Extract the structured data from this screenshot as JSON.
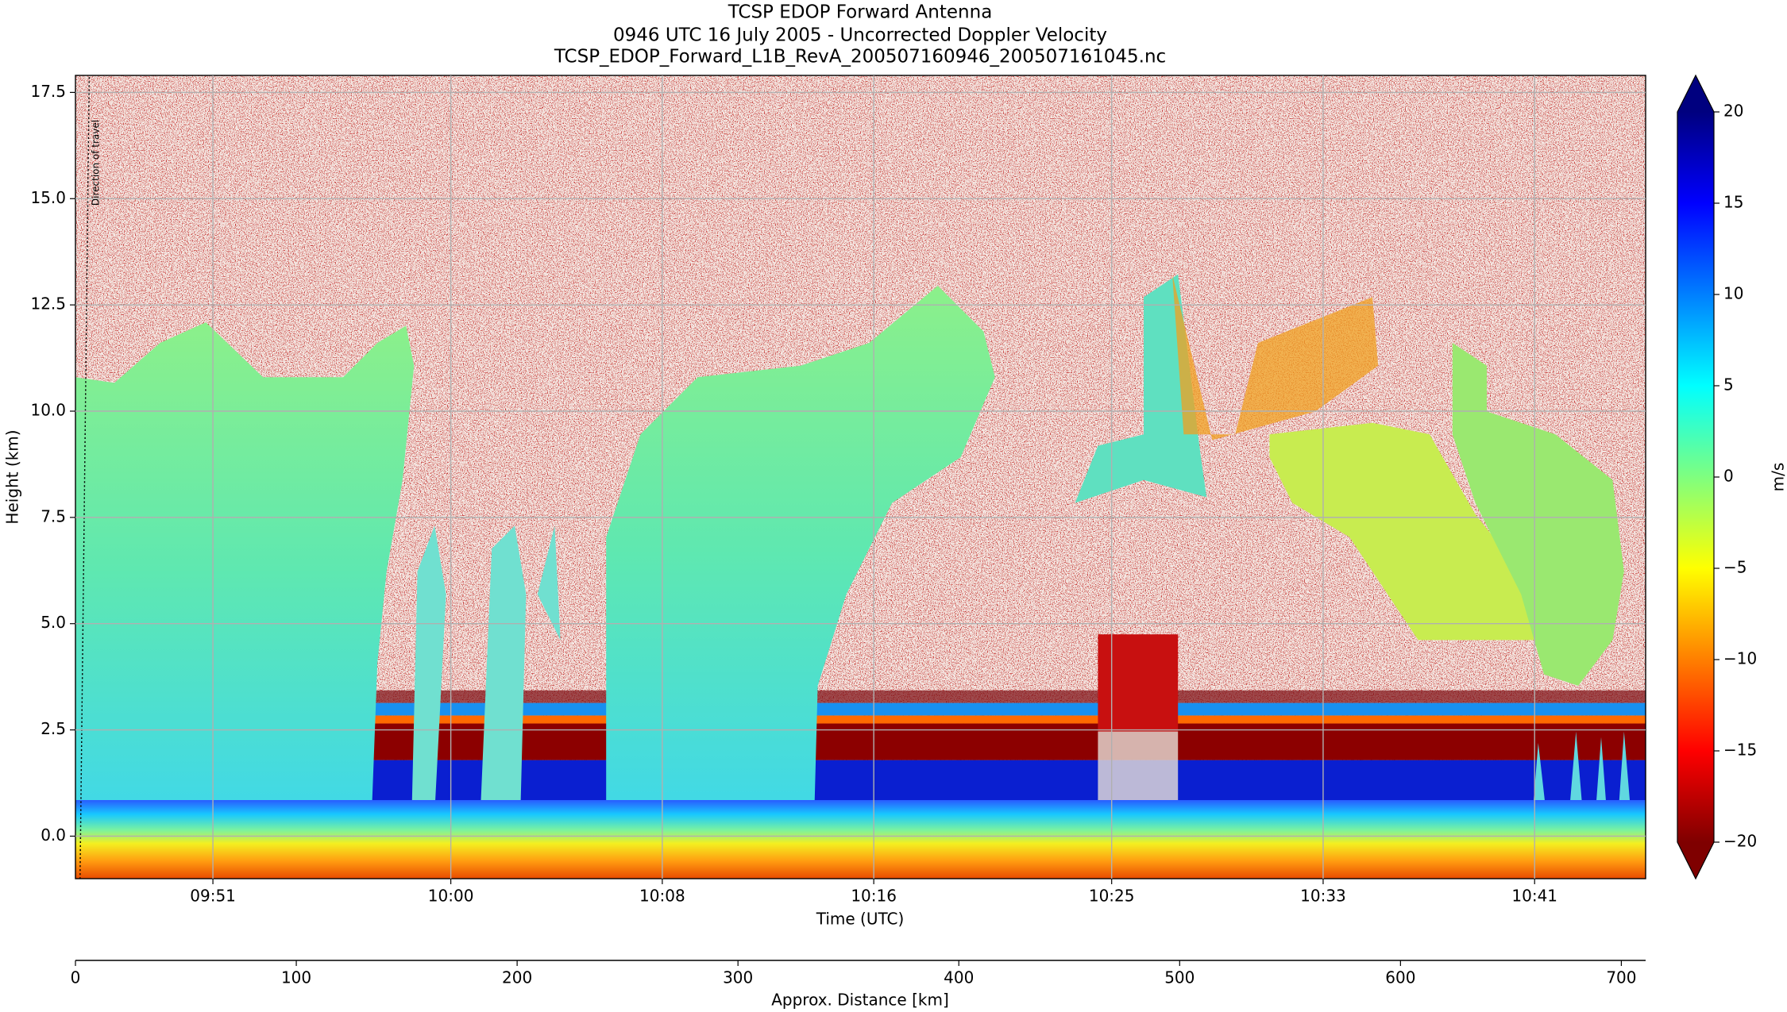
{
  "chart_data": {
    "type": "heatmap",
    "title": "TCSP EDOP Forward Antenna",
    "subtitle": [
      "0946 UTC 16 July 2005 - Uncorrected Doppler Velocity",
      "TCSP_EDOP_Forward_L1B_RevA_200507160946_200507161045.nc"
    ],
    "xlabel": "Time (UTC)",
    "ylabel": "Height (km)",
    "annotation": "Direction of travel",
    "xlim": [
      585.8,
      645.2
    ],
    "xticks": [
      {
        "value": 591,
        "label": "09:51"
      },
      {
        "value": 600,
        "label": "10:00"
      },
      {
        "value": 608,
        "label": "10:08"
      },
      {
        "value": 616,
        "label": "10:16"
      },
      {
        "value": 625,
        "label": "10:25"
      },
      {
        "value": 633,
        "label": "10:33"
      },
      {
        "value": 641,
        "label": "10:41"
      }
    ],
    "ylim": [
      -1,
      17.9
    ],
    "yticks": [
      {
        "value": 0,
        "label": "0.0"
      },
      2.5,
      {
        "value": 5,
        "label": "5.0"
      },
      7.5,
      {
        "value": 10,
        "label": "10.0"
      },
      12.5,
      {
        "value": 15,
        "label": "15.0"
      },
      17.5
    ],
    "grid": true,
    "colorbar": {
      "label": "m/s",
      "colormap": "jet_r",
      "clim": [
        -20,
        20
      ],
      "ticks": [
        20,
        15,
        10,
        5,
        0,
        {
          "value": -5,
          "label": "−5"
        },
        {
          "value": -10,
          "label": "−10"
        },
        {
          "value": -15,
          "label": "−15"
        },
        {
          "value": -20,
          "label": "−20"
        }
      ]
    },
    "x2": {
      "label": "Approx. Distance [km]",
      "xlim": [
        0,
        711
      ],
      "xticks": [
        0,
        100,
        200,
        300,
        400,
        500,
        600,
        700
      ]
    }
  }
}
